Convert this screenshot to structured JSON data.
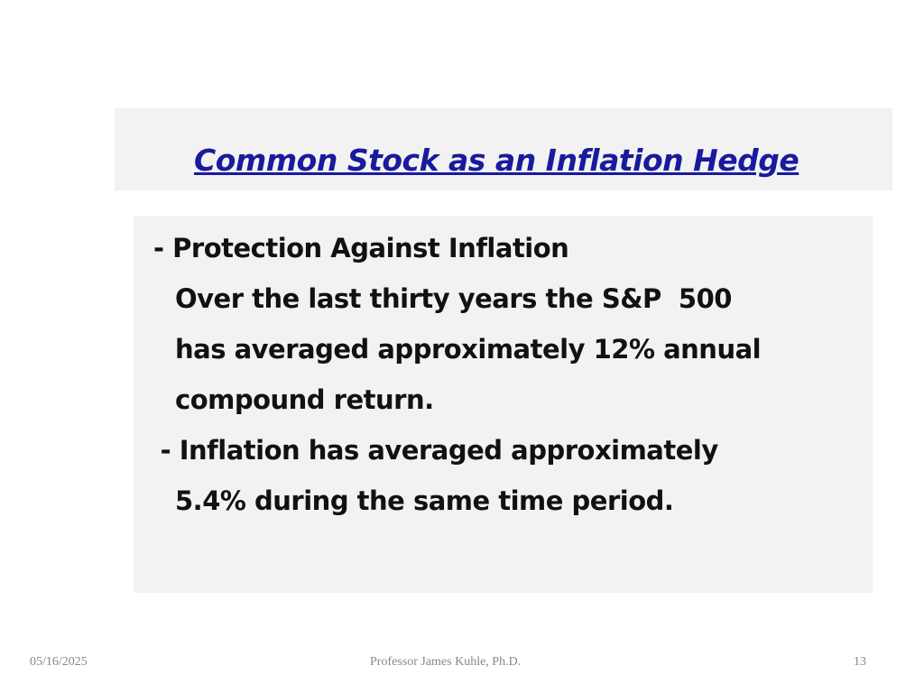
{
  "title": "Common Stock as an Inflation Hedge",
  "body": {
    "lines": [
      "- Protection Against Inflation",
      "Over the last thirty years the S&P  500",
      "has averaged approximately 12% annual",
      "compound return.",
      " - Inflation has averaged approximately",
      "5.4% during the same time period."
    ]
  },
  "footer": {
    "date": "05/16/2025",
    "author": "Professor James Kuhle, Ph.D.",
    "page": "13"
  }
}
